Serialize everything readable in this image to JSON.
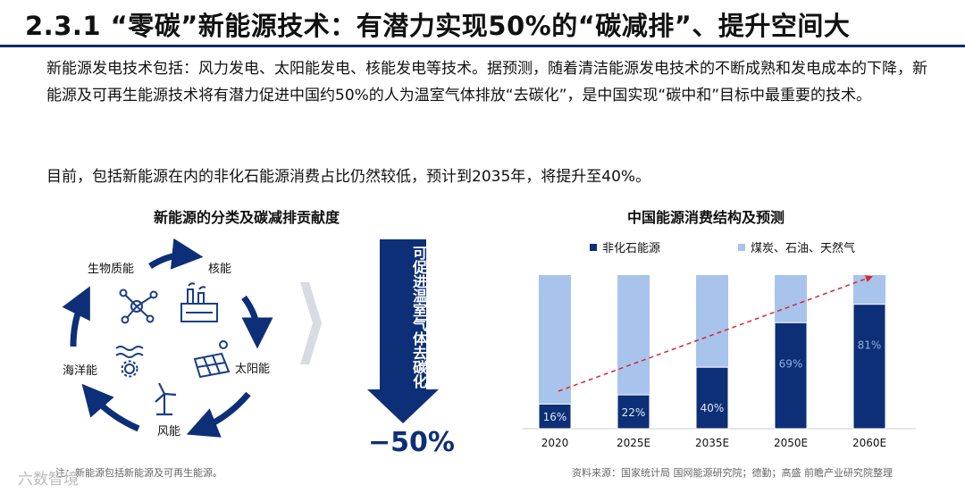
{
  "header": {
    "title": "2.3.1 “零碳”新能源技术：有潜力实现50%的“碳减排”、提升空间大"
  },
  "body": {
    "p1": "新能源发电技术包括：风力发电、太阳能发电、核能发电等技术。据预测，随着清洁能源发电技术的不断成熟和发电成本的下降，新能源及可再生能源技术将有潜力促进中国约50%的人为温室气体排放“去碳化”，是中国实现“碳中和”目标中最重要的技术。",
    "p2": "目前，包括新能源在内的非化石能源消费占比仍然较低，预计到2035年，将提升至40%。"
  },
  "left_panel": {
    "title": "新能源的分类及碳减排贡献度",
    "labels": {
      "biomass": "生物质能",
      "nuclear": "核能",
      "solar": "太阳能",
      "wind": "风能",
      "ocean": "海洋能"
    },
    "banner": "可促进温室气体去碳化",
    "reduction": "−50%",
    "footnote": "注：新能源包括新能源及可再生能源。",
    "icons": [
      "molecule-icon",
      "factory-icon",
      "solar-panel-icon",
      "wind-turbine-icon",
      "wave-gear-icon"
    ]
  },
  "right_panel": {
    "source": "资料来源：国家统计局 国网能源研究院；德勤；高盛 前瞻产业研究院整理"
  },
  "watermark": "六数智境",
  "colors": {
    "dark": "#0d2f77",
    "light": "#a9c4ec",
    "title_rule": "#0b2a66",
    "arrow": "#d9262c"
  },
  "chart_data": {
    "type": "bar",
    "stacked": true,
    "title": "中国能源消费结构及预测",
    "categories": [
      "2020",
      "2025E",
      "2035E",
      "2050E",
      "2060E"
    ],
    "series": [
      {
        "name": "非化石能源",
        "values": [
          16,
          22,
          40,
          69,
          81
        ],
        "labels": [
          "16%",
          "22%",
          "40%",
          "69%",
          "81%"
        ]
      },
      {
        "name": "煤炭、石油、天然气",
        "values": [
          84,
          78,
          60,
          31,
          19
        ]
      }
    ],
    "ylim": [
      0,
      100
    ],
    "legend": "top",
    "grid": false,
    "trend_arrow": true
  }
}
